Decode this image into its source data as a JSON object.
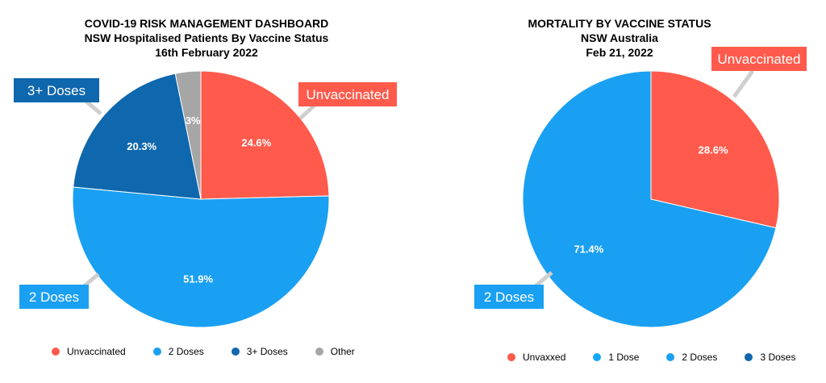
{
  "colors": {
    "unvaccinated": "#ff5a4b",
    "one_dose": "#13a8f6",
    "two_doses": "#1aa0f2",
    "three_plus": "#0f67ad",
    "other": "#a6a6a6",
    "leader": "#cfcfcf"
  },
  "chart_data": [
    {
      "type": "pie",
      "title": "COVID-19 RISK MANAGEMENT DASHBOARD",
      "subtitle": "NSW Hospitalised Patients By Vaccine Status",
      "date": "16th February 2022",
      "slices": [
        {
          "label": "Unvaccinated",
          "value": 24.6,
          "display": "24.6%",
          "color_key": "unvaccinated"
        },
        {
          "label": "2 Doses",
          "value": 51.9,
          "display": "51.9%",
          "color_key": "two_doses"
        },
        {
          "label": "3+ Doses",
          "value": 20.3,
          "display": "20.3%",
          "color_key": "three_plus"
        },
        {
          "label": "Other",
          "value": 3.2,
          "display": "3%",
          "color_key": "other"
        }
      ],
      "callouts": [
        "Unvaccinated",
        "2 Doses",
        "3+ Doses"
      ],
      "legend": [
        "Unvaccinated",
        "2 Doses",
        "3+ Doses",
        "Other"
      ],
      "legend_placement": "bottom"
    },
    {
      "type": "pie",
      "title": "MORTALITY BY VACCINE STATUS",
      "subtitle": "NSW Australia",
      "date": "Feb 21, 2022",
      "slices": [
        {
          "label": "Unvaxxed",
          "value": 28.6,
          "display": "28.6%",
          "color_key": "unvaccinated"
        },
        {
          "label": "2 Doses",
          "value": 71.4,
          "display": "71.4%",
          "color_key": "two_doses"
        }
      ],
      "callouts": [
        "Unvaccinated",
        "2 Doses"
      ],
      "legend": [
        {
          "label": "Unvaxxed",
          "color_key": "unvaccinated"
        },
        {
          "label": "1 Dose",
          "color_key": "one_dose"
        },
        {
          "label": "2 Doses",
          "color_key": "two_doses"
        },
        {
          "label": "3 Doses",
          "color_key": "three_plus"
        }
      ],
      "legend_placement": "bottom"
    }
  ]
}
